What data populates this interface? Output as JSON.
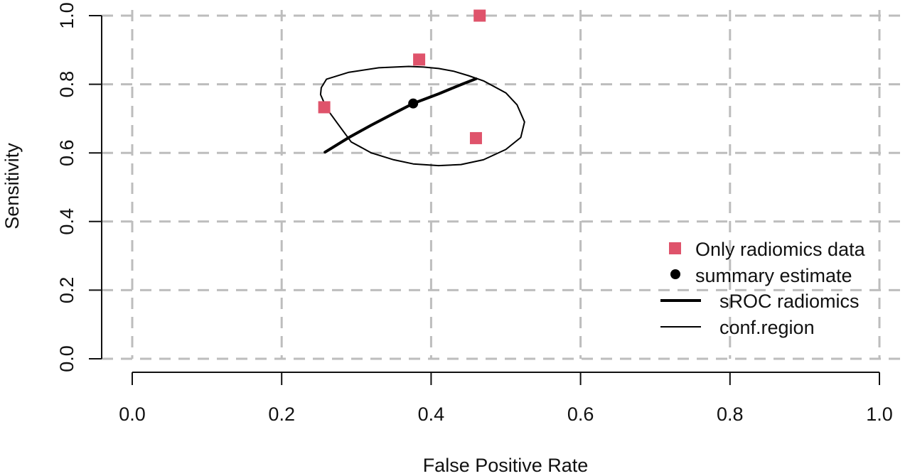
{
  "chart_data": {
    "type": "scatter",
    "title": "",
    "xlabel": "False Positive Rate",
    "ylabel": "Sensitivity",
    "xlim": [
      0,
      1
    ],
    "ylim": [
      0,
      1
    ],
    "grid": true,
    "x_ticks": [
      "0.0",
      "0.2",
      "0.4",
      "0.6",
      "0.8",
      "1.0"
    ],
    "y_ticks": [
      "0.0",
      "0.2",
      "0.4",
      "0.6",
      "0.8",
      "1.0"
    ],
    "legend_position": "right",
    "colors": {
      "points": "#DF536B",
      "summary": "#000000",
      "lines": "#000000"
    },
    "series": [
      {
        "name": "Only radiomics data",
        "kind": "points",
        "marker": "square",
        "x": [
          0.465,
          0.384,
          0.257,
          0.46
        ],
        "y": [
          1.0,
          0.872,
          0.733,
          0.643
        ]
      },
      {
        "name": "summary estimate",
        "kind": "points",
        "marker": "circle",
        "x": [
          0.376
        ],
        "y": [
          0.744
        ]
      },
      {
        "name": "sROC radiomics",
        "kind": "line",
        "line_width": "thick",
        "x": [
          0.258,
          0.29,
          0.32,
          0.35,
          0.376,
          0.41,
          0.44,
          0.46
        ],
        "y": [
          0.602,
          0.645,
          0.681,
          0.715,
          0.744,
          0.772,
          0.799,
          0.816
        ]
      },
      {
        "name": "conf.region",
        "kind": "line",
        "line_width": "thin",
        "closed": true,
        "x": [
          0.293,
          0.32,
          0.35,
          0.376,
          0.41,
          0.44,
          0.47,
          0.5,
          0.52,
          0.525,
          0.515,
          0.5,
          0.47,
          0.45,
          0.43,
          0.41,
          0.39,
          0.37,
          0.33,
          0.29,
          0.26,
          0.253,
          0.252,
          0.26,
          0.275,
          0.293
        ],
        "y": [
          0.632,
          0.6,
          0.58,
          0.568,
          0.563,
          0.566,
          0.58,
          0.61,
          0.645,
          0.69,
          0.74,
          0.775,
          0.81,
          0.825,
          0.838,
          0.846,
          0.85,
          0.852,
          0.848,
          0.835,
          0.815,
          0.79,
          0.77,
          0.73,
          0.685,
          0.632
        ]
      }
    ]
  }
}
